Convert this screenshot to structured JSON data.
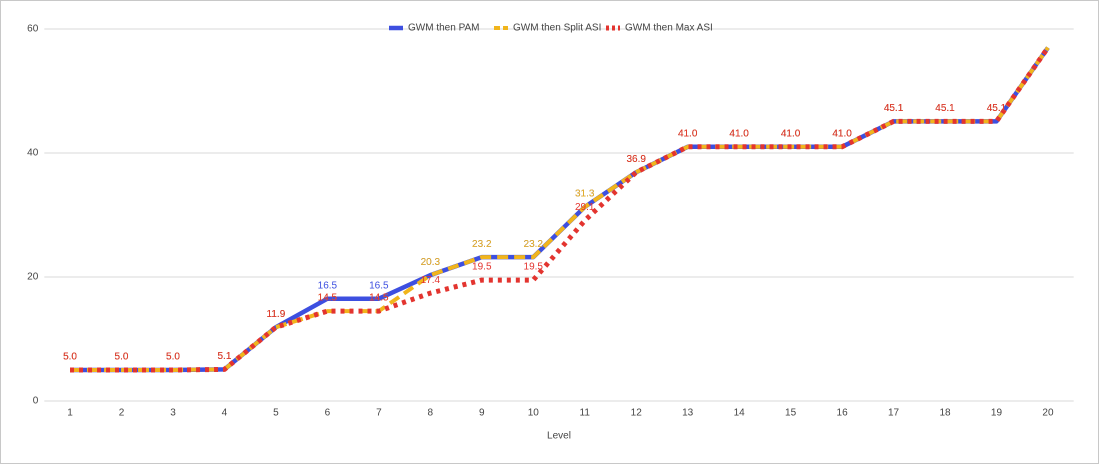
{
  "chart_data": {
    "type": "line",
    "x_label": "Level",
    "categories": [
      "1",
      "2",
      "3",
      "4",
      "5",
      "6",
      "7",
      "8",
      "9",
      "10",
      "11",
      "12",
      "13",
      "14",
      "15",
      "16",
      "17",
      "18",
      "19",
      "20"
    ],
    "series": [
      {
        "name": "GWM then PAM",
        "color": "#3d4fe0",
        "style": "solid",
        "values": [
          5.0,
          5.0,
          5.0,
          5.1,
          11.9,
          16.5,
          16.5,
          20.3,
          23.2,
          23.2,
          31.3,
          36.9,
          41.0,
          41.0,
          41.0,
          41.0,
          45.1,
          45.1,
          45.1,
          57
        ],
        "value_labels": [
          "5.0",
          "5.0",
          "5.0",
          "5.1",
          "11.9",
          "16.5",
          "16.5",
          "20.3",
          "23.2",
          "23.2",
          "31.3",
          "36.9",
          "41.0",
          "41.0",
          "41.0",
          "41.0",
          "45.1",
          "45.1",
          "45.1",
          null
        ]
      },
      {
        "name": "GWM then Split ASI",
        "color": "#f1b51c",
        "style": "dashed",
        "values": [
          5.0,
          5.0,
          5.0,
          5.1,
          11.9,
          14.5,
          14.5,
          20.3,
          23.2,
          23.2,
          31.3,
          36.9,
          41.0,
          41.0,
          41.0,
          41.0,
          45.1,
          45.1,
          45.1,
          57
        ],
        "value_labels": [
          "5.0",
          "5.0",
          "5.0",
          "5.1",
          "11.9",
          "14.5",
          "14.5",
          "20.3",
          "23.2",
          "23.2",
          "31.3",
          "36.9",
          "41.0",
          "41.0",
          "41.0",
          "41.0",
          "45.1",
          "45.1",
          "45.1",
          null
        ]
      },
      {
        "name": "GWM then Max ASI",
        "color": "#e3342f",
        "style": "dotted",
        "values": [
          5.0,
          5.0,
          5.0,
          5.1,
          11.9,
          14.5,
          14.5,
          17.4,
          19.5,
          19.5,
          29.1,
          36.9,
          41.0,
          41.0,
          41.0,
          41.0,
          45.1,
          45.1,
          45.1,
          57
        ],
        "value_labels": [
          "5.0",
          "5.0",
          "5.0",
          "5.1",
          "11.9",
          "14.5",
          "14.5",
          "17.4",
          "19.5",
          "19.5",
          "29.1",
          "36.9",
          "41.0",
          "41.0",
          "41.0",
          "41.0",
          "45.1",
          "45.1",
          "45.1",
          null
        ]
      }
    ],
    "ylim": [
      0,
      60
    ],
    "yticks": [
      0,
      20,
      40,
      60
    ],
    "grid": true,
    "legend": "top"
  }
}
